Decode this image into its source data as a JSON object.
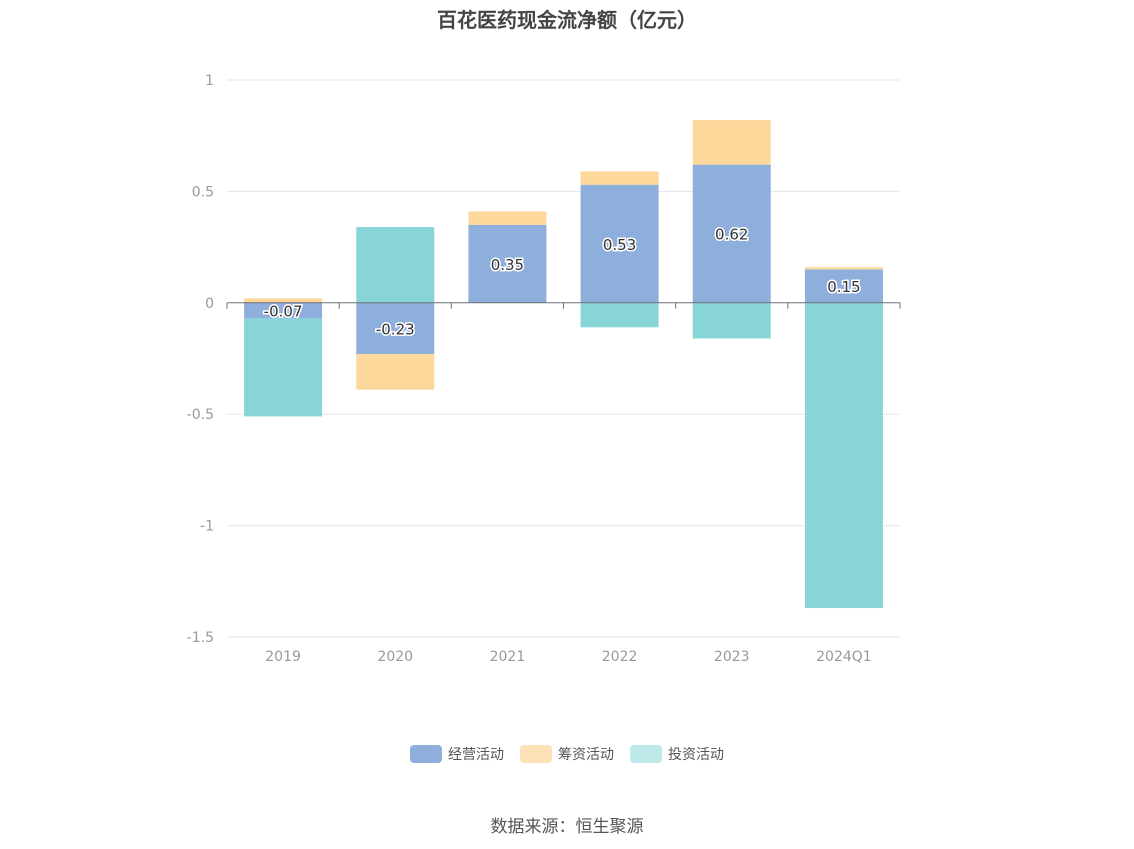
{
  "chart_data": {
    "type": "bar",
    "stacked": true,
    "title": "百花医药现金流净额（亿元）",
    "categories": [
      "2019",
      "2020",
      "2021",
      "2022",
      "2023",
      "2024Q1"
    ],
    "series": [
      {
        "name": "经营活动",
        "color": "#8eaedb",
        "values": [
          -0.07,
          -0.23,
          0.35,
          0.53,
          0.62,
          0.15
        ],
        "labels": [
          "-0.07",
          "-0.23",
          "0.35",
          "0.53",
          "0.62",
          "0.15"
        ]
      },
      {
        "name": "筹资活动",
        "color": "#fdd89a",
        "values": [
          0.02,
          -0.16,
          0.06,
          0.06,
          0.2,
          0.01
        ]
      },
      {
        "name": "投资活动",
        "color": "#88d5d8",
        "values": [
          -0.44,
          0.34,
          0.0,
          -0.11,
          -0.16,
          -1.37
        ]
      }
    ],
    "legend_colors": [
      "#8eaedb",
      "#fde2b8",
      "#bfe8ea"
    ],
    "yticks": [
      "1",
      "0.5",
      "0",
      "-0.5",
      "-1",
      "-1.5"
    ],
    "ylim": [
      -1.5,
      1
    ],
    "legend_position": "bottom",
    "grid": true
  },
  "source": "数据来源：恒生聚源"
}
